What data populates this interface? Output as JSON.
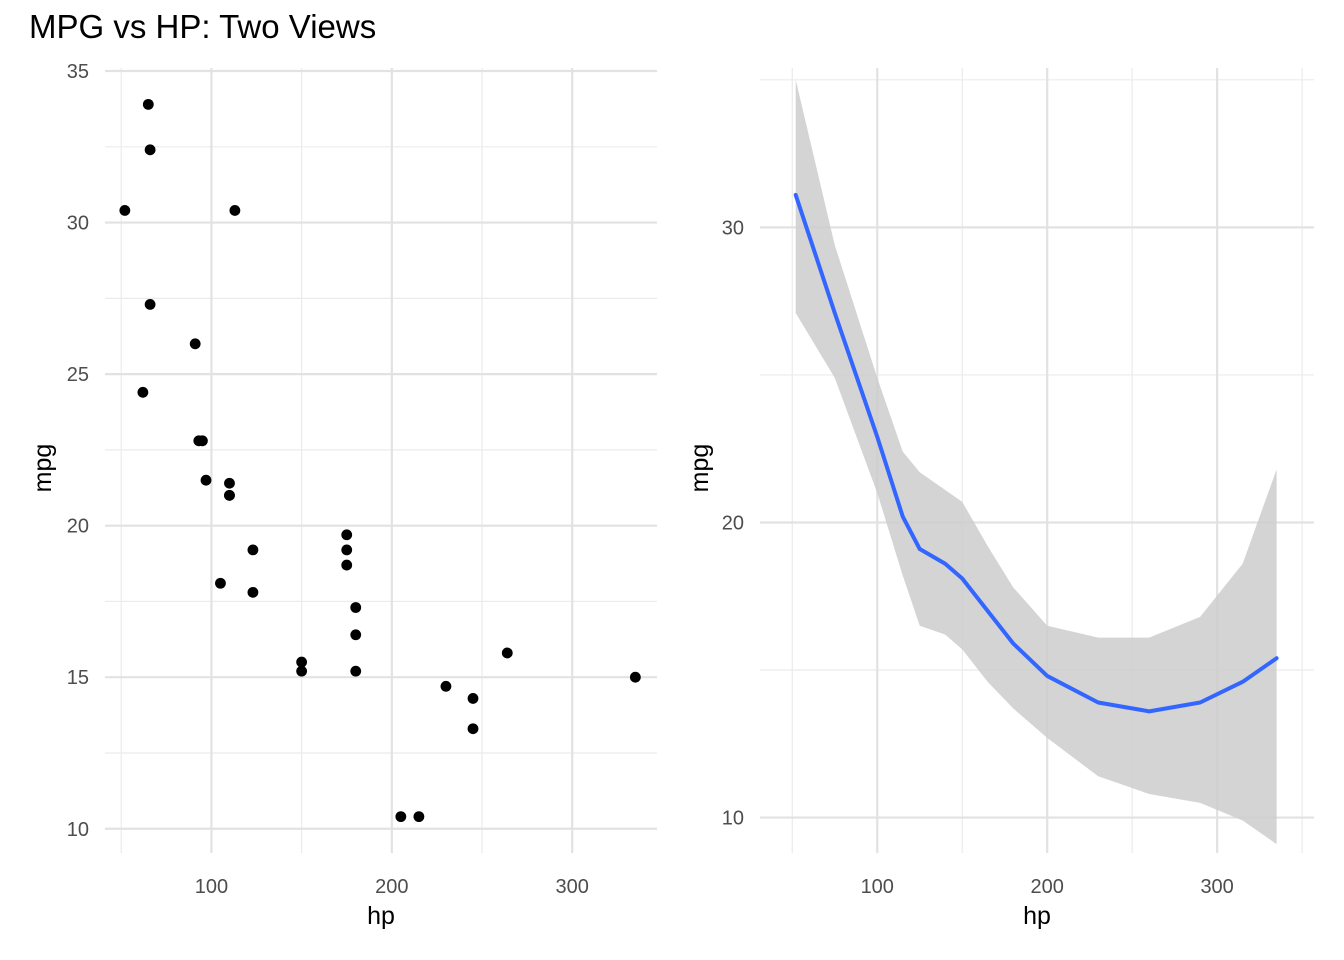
{
  "title": "MPG vs HP: Two Views",
  "chart_data": [
    {
      "type": "scatter",
      "xlabel": "hp",
      "ylabel": "mpg",
      "xlim": [
        41,
        347
      ],
      "ylim": [
        9.2,
        35.1
      ],
      "x_ticks": [
        100,
        200,
        300
      ],
      "y_ticks": [
        10,
        15,
        20,
        25,
        30,
        35
      ],
      "grid": true,
      "point_color": "#000000",
      "points": [
        {
          "x": 65,
          "y": 33.9
        },
        {
          "x": 66,
          "y": 32.4
        },
        {
          "x": 52,
          "y": 30.4
        },
        {
          "x": 113,
          "y": 30.4
        },
        {
          "x": 66,
          "y": 27.3
        },
        {
          "x": 91,
          "y": 26.0
        },
        {
          "x": 62,
          "y": 24.4
        },
        {
          "x": 93,
          "y": 22.8
        },
        {
          "x": 95,
          "y": 22.8
        },
        {
          "x": 97,
          "y": 21.5
        },
        {
          "x": 110,
          "y": 21.4
        },
        {
          "x": 110,
          "y": 21.0
        },
        {
          "x": 110,
          "y": 21.0
        },
        {
          "x": 123,
          "y": 19.2
        },
        {
          "x": 175,
          "y": 19.7
        },
        {
          "x": 175,
          "y": 19.2
        },
        {
          "x": 175,
          "y": 18.7
        },
        {
          "x": 105,
          "y": 18.1
        },
        {
          "x": 123,
          "y": 17.8
        },
        {
          "x": 180,
          "y": 17.3
        },
        {
          "x": 180,
          "y": 16.4
        },
        {
          "x": 150,
          "y": 15.5
        },
        {
          "x": 150,
          "y": 15.2
        },
        {
          "x": 180,
          "y": 15.2
        },
        {
          "x": 264,
          "y": 15.8
        },
        {
          "x": 335,
          "y": 15.0
        },
        {
          "x": 230,
          "y": 14.7
        },
        {
          "x": 245,
          "y": 14.3
        },
        {
          "x": 245,
          "y": 13.3
        },
        {
          "x": 205,
          "y": 10.4
        },
        {
          "x": 215,
          "y": 10.4
        }
      ]
    },
    {
      "type": "line",
      "xlabel": "hp",
      "ylabel": "mpg",
      "xlim": [
        31,
        357
      ],
      "ylim": [
        8.8,
        35.4
      ],
      "x_ticks": [
        100,
        200,
        300
      ],
      "y_ticks": [
        10,
        20,
        30
      ],
      "grid": true,
      "line_color": "#3366ff",
      "band_color": "#cccccc",
      "series": [
        {
          "x": [
            52,
            75,
            100,
            115,
            125,
            140,
            150,
            165,
            180,
            200,
            230,
            260,
            290,
            315,
            335
          ],
          "y": [
            31.1,
            27.1,
            22.9,
            20.2,
            19.1,
            18.6,
            18.1,
            17.0,
            15.9,
            14.8,
            13.9,
            13.6,
            13.9,
            14.6,
            15.4
          ],
          "lower": [
            27.1,
            24.9,
            21.0,
            18.2,
            16.5,
            16.2,
            15.7,
            14.6,
            13.7,
            12.7,
            11.4,
            10.8,
            10.5,
            9.9,
            9.1
          ],
          "upper": [
            35.0,
            29.4,
            24.9,
            22.4,
            21.7,
            21.1,
            20.7,
            19.2,
            17.8,
            16.5,
            16.1,
            16.1,
            16.8,
            18.6,
            21.8
          ]
        }
      ]
    }
  ]
}
